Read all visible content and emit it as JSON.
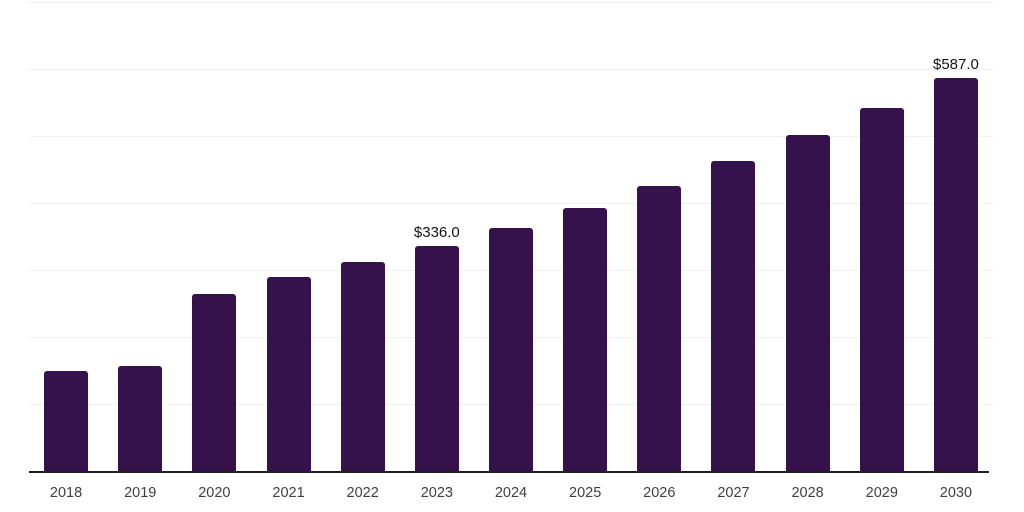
{
  "chart_data": {
    "type": "bar",
    "categories": [
      "2018",
      "2019",
      "2020",
      "2021",
      "2022",
      "2023",
      "2024",
      "2025",
      "2026",
      "2027",
      "2028",
      "2029",
      "2030"
    ],
    "values": [
      150,
      157,
      264,
      290,
      312,
      336,
      363,
      393,
      426,
      462,
      501,
      542,
      587
    ],
    "data_labels": [
      {
        "category": "2023",
        "text": "$336.0"
      },
      {
        "category": "2030",
        "text": "$587.0"
      }
    ],
    "ylim": [
      0,
      700
    ],
    "gridline_step": 100,
    "grid": true,
    "legend": false,
    "colors": {
      "bar": "#35124B",
      "gridline": "#f0f0f0",
      "axis_line": "#1f1f1f",
      "tick_label": "#404040",
      "data_label": "#141414",
      "background": "#ffffff"
    }
  }
}
